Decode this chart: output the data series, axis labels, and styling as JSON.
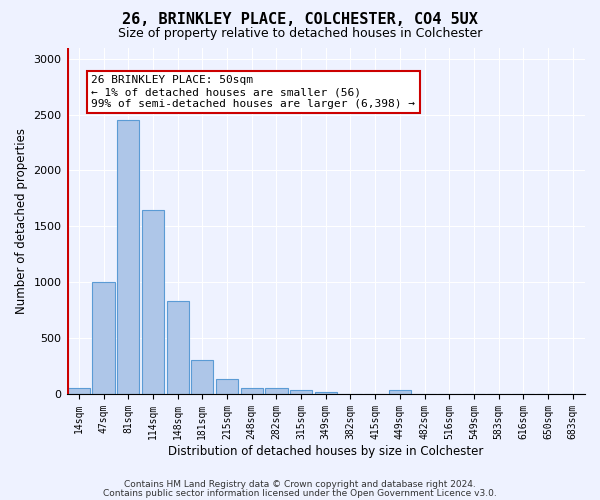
{
  "title1": "26, BRINKLEY PLACE, COLCHESTER, CO4 5UX",
  "title2": "Size of property relative to detached houses in Colchester",
  "xlabel": "Distribution of detached houses by size in Colchester",
  "ylabel": "Number of detached properties",
  "categories": [
    "14sqm",
    "47sqm",
    "81sqm",
    "114sqm",
    "148sqm",
    "181sqm",
    "215sqm",
    "248sqm",
    "282sqm",
    "315sqm",
    "349sqm",
    "382sqm",
    "415sqm",
    "449sqm",
    "482sqm",
    "516sqm",
    "549sqm",
    "583sqm",
    "616sqm",
    "650sqm",
    "683sqm"
  ],
  "values": [
    55,
    1000,
    2450,
    1650,
    830,
    300,
    135,
    50,
    50,
    40,
    20,
    0,
    0,
    35,
    0,
    0,
    0,
    0,
    0,
    0,
    0
  ],
  "bar_color": "#aec6e8",
  "bar_edgecolor": "#5b9bd5",
  "annotation_line1": "26 BRINKLEY PLACE: 50sqm",
  "annotation_line2": "← 1% of detached houses are smaller (56)",
  "annotation_line3": "99% of semi-detached houses are larger (6,398) →",
  "vline_x": 0,
  "ylim": [
    0,
    3100
  ],
  "ylim_display": 3000,
  "yticks": [
    0,
    500,
    1000,
    1500,
    2000,
    2500,
    3000
  ],
  "footer1": "Contains HM Land Registry data © Crown copyright and database right 2024.",
  "footer2": "Contains public sector information licensed under the Open Government Licence v3.0.",
  "bg_color": "#eef2ff",
  "grid_color": "#ffffff",
  "annotation_box_color": "#ffffff",
  "annotation_border_color": "#cc0000",
  "vline_color": "#cc0000",
  "title1_fontsize": 11,
  "title2_fontsize": 9
}
